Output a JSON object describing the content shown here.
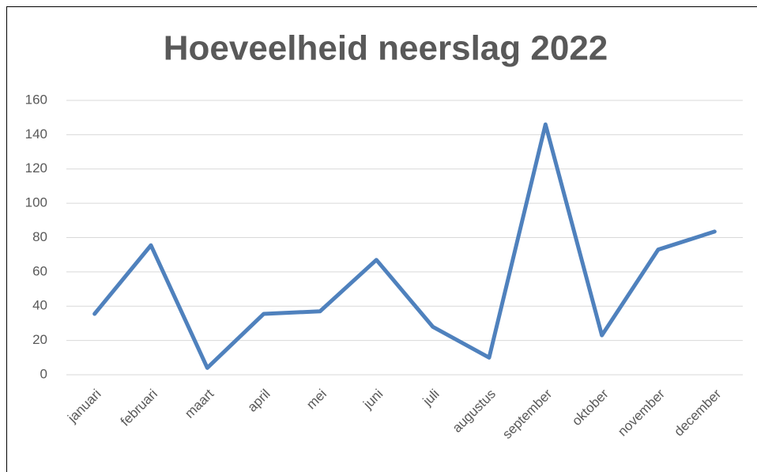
{
  "chart_data": {
    "type": "line",
    "title": "Hoeveelheid neerslag 2022",
    "categories": [
      "januari",
      "februari",
      "maart",
      "april",
      "mei",
      "juni",
      "juli",
      "augustus",
      "september",
      "oktober",
      "november",
      "december"
    ],
    "series": [
      {
        "name": "neerslag",
        "color": "#4f81bd",
        "values": [
          35.5,
          75.5,
          4,
          35.5,
          37,
          67,
          28,
          10,
          146,
          23,
          73,
          83.5
        ]
      }
    ],
    "ylim": [
      0,
      160
    ],
    "yticks": [
      0,
      20,
      40,
      60,
      80,
      100,
      120,
      140,
      160
    ],
    "grid": true
  }
}
